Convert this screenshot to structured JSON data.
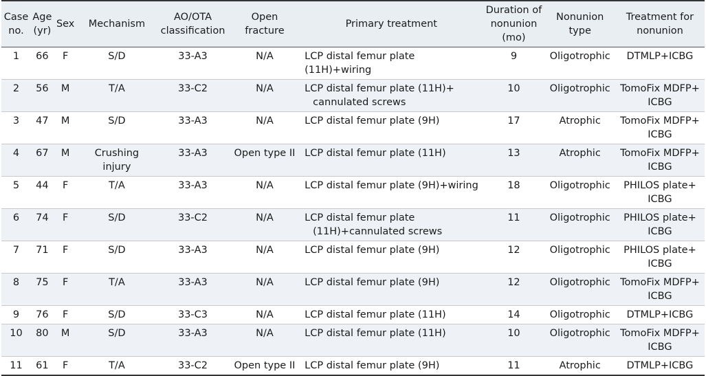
{
  "headers": {
    "case": [
      "Case",
      "no."
    ],
    "age": [
      "Age",
      "(yr)"
    ],
    "sex": "Sex",
    "mechanism": "Mechanism",
    "ao": [
      "AO/OTA",
      "classification"
    ],
    "open": [
      "Open",
      "fracture"
    ],
    "primary": "Primary treatment",
    "duration": [
      "Duration of",
      "nonunion",
      "(mo)"
    ],
    "type": [
      "Nonunion",
      "type"
    ],
    "treatment": [
      "Treatment for",
      "nonunion"
    ]
  },
  "rows": [
    {
      "case": "1",
      "age": "66",
      "sex": "F",
      "mechanism": "S/D",
      "ao": "33-A3",
      "open": "N/A",
      "primary": [
        "LCP distal femur plate (11H)+wiring"
      ],
      "duration": "9",
      "type": "Oligotrophic",
      "treatment": [
        "DTMLP+ICBG"
      ]
    },
    {
      "case": "2",
      "age": "56",
      "sex": "M",
      "mechanism": "T/A",
      "ao": "33-C2",
      "open": "N/A",
      "primary": [
        "LCP distal femur plate (11H)+",
        "cannulated screws"
      ],
      "duration": "10",
      "type": "Oligotrophic",
      "treatment": [
        "TomoFix MDFP+",
        "ICBG"
      ]
    },
    {
      "case": "3",
      "age": "47",
      "sex": "M",
      "mechanism": "S/D",
      "ao": "33-A3",
      "open": "N/A",
      "primary": [
        "LCP distal femur plate (9H)"
      ],
      "duration": "17",
      "type": "Atrophic",
      "treatment": [
        "TomoFix MDFP+",
        "ICBG"
      ]
    },
    {
      "case": "4",
      "age": "67",
      "sex": "M",
      "mechanism": "Crushing injury",
      "ao": "33-A3",
      "open": "Open type II",
      "primary": [
        "LCP distal femur plate (11H)"
      ],
      "duration": "13",
      "type": "Atrophic",
      "treatment": [
        "TomoFix MDFP+",
        "ICBG"
      ]
    },
    {
      "case": "5",
      "age": "44",
      "sex": "F",
      "mechanism": "T/A",
      "ao": "33-A3",
      "open": "N/A",
      "primary": [
        "LCP distal femur plate (9H)+wiring"
      ],
      "duration": "18",
      "type": "Oligotrophic",
      "treatment": [
        "PHILOS plate+",
        "ICBG"
      ]
    },
    {
      "case": "6",
      "age": "74",
      "sex": "F",
      "mechanism": "S/D",
      "ao": "33-C2",
      "open": "N/A",
      "primary": [
        "LCP distal femur plate",
        "(11H)+cannulated screws"
      ],
      "duration": "11",
      "type": "Oligotrophic",
      "treatment": [
        "PHILOS plate+",
        "ICBG"
      ]
    },
    {
      "case": "7",
      "age": "71",
      "sex": "F",
      "mechanism": "S/D",
      "ao": "33-A3",
      "open": "N/A",
      "primary": [
        "LCP distal femur plate (9H)"
      ],
      "duration": "12",
      "type": "Oligotrophic",
      "treatment": [
        "PHILOS plate+",
        "ICBG"
      ]
    },
    {
      "case": "8",
      "age": "75",
      "sex": "F",
      "mechanism": "T/A",
      "ao": "33-A3",
      "open": "N/A",
      "primary": [
        "LCP distal femur plate (9H)"
      ],
      "duration": "12",
      "type": "Oligotrophic",
      "treatment": [
        "TomoFix MDFP+",
        "ICBG"
      ]
    },
    {
      "case": "9",
      "age": "76",
      "sex": "F",
      "mechanism": "S/D",
      "ao": "33-C3",
      "open": "N/A",
      "primary": [
        "LCP distal femur plate (11H)"
      ],
      "duration": "14",
      "type": "Oligotrophic",
      "treatment": [
        "DTMLP+ICBG"
      ]
    },
    {
      "case": "10",
      "age": "80",
      "sex": "M",
      "mechanism": "S/D",
      "ao": "33-A3",
      "open": "N/A",
      "primary": [
        "LCP distal femur plate (11H)"
      ],
      "duration": "10",
      "type": "Oligotrophic",
      "treatment": [
        "TomoFix MDFP+",
        "ICBG"
      ]
    },
    {
      "case": "11",
      "age": "61",
      "sex": "F",
      "mechanism": "T/A",
      "ao": "33-C2",
      "open": "Open type II",
      "primary": [
        "LCP distal femur plate (9H)"
      ],
      "duration": "11",
      "type": "Atrophic",
      "treatment": [
        "DTMLP+ICBG"
      ]
    }
  ]
}
